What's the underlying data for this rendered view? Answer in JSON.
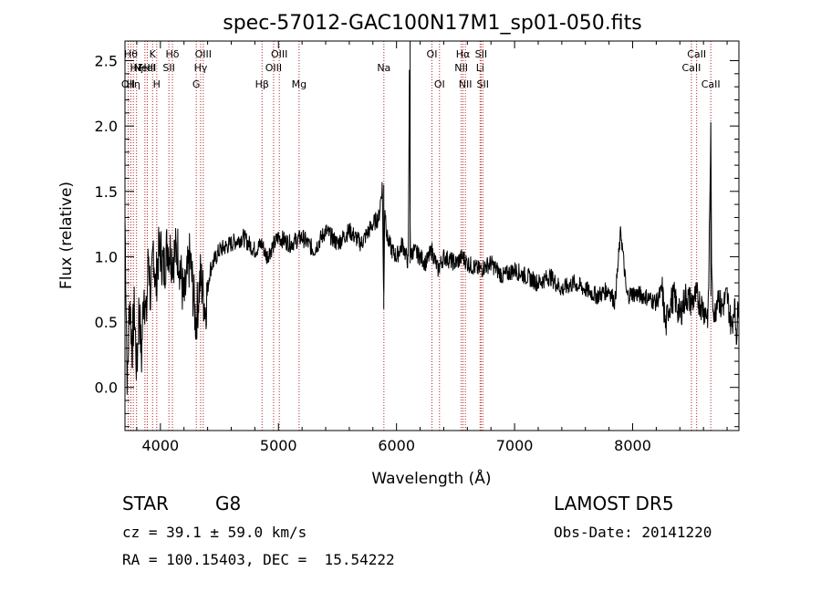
{
  "chart_data": {
    "type": "line",
    "title": "spec-57012-GAC100N17M1_sp01-050.fits",
    "xlabel": "Wavelength (Å)",
    "ylabel": "Flux (relative)",
    "xlim": [
      3700,
      8900
    ],
    "ylim": [
      -0.33,
      2.65
    ],
    "xticks": [
      4000,
      5000,
      6000,
      7000,
      8000
    ],
    "yticks": [
      0.0,
      0.5,
      1.0,
      1.5,
      2.0,
      2.5
    ],
    "xtick_labels": [
      "4000",
      "5000",
      "6000",
      "7000",
      "8000"
    ],
    "ytick_labels": [
      "0.0",
      "0.5",
      "1.0",
      "1.5",
      "2.0",
      "2.5"
    ],
    "grid": false,
    "series": [
      {
        "line_color": "#000000",
        "x": [
          3700,
          3720,
          3740,
          3760,
          3780,
          3800,
          3820,
          3840,
          3860,
          3880,
          3900,
          3920,
          3940,
          3960,
          3980,
          4000,
          4030,
          4060,
          4100,
          4150,
          4200,
          4250,
          4300,
          4340,
          4380,
          4420,
          4500,
          4600,
          4700,
          4800,
          4860,
          4900,
          5000,
          5100,
          5200,
          5300,
          5400,
          5500,
          5600,
          5700,
          5800,
          5850,
          5880,
          5892,
          5900,
          5920,
          5960,
          6000,
          6050,
          6100,
          6110,
          6115,
          6120,
          6140,
          6200,
          6250,
          6300,
          6350,
          6400,
          6500,
          6560,
          6600,
          6700,
          6800,
          6900,
          7000,
          7100,
          7200,
          7300,
          7400,
          7500,
          7600,
          7700,
          7800,
          7850,
          7900,
          7950,
          8000,
          8100,
          8200,
          8250,
          8280,
          8300,
          8350,
          8400,
          8450,
          8500,
          8540,
          8600,
          8640,
          8662,
          8670,
          8680,
          8700,
          8720,
          8750,
          8800,
          8840,
          8860,
          8880,
          8900
        ],
        "y": [
          1.3,
          0.0,
          0.7,
          0.3,
          0.6,
          0.1,
          0.65,
          0.2,
          0.8,
          0.5,
          1.05,
          0.6,
          1.1,
          0.75,
          1.0,
          1.05,
          0.9,
          1.1,
          1.0,
          1.05,
          0.65,
          1.0,
          0.5,
          0.85,
          0.6,
          0.9,
          1.05,
          1.1,
          1.15,
          1.05,
          1.1,
          1.0,
          1.15,
          1.1,
          1.15,
          1.05,
          1.2,
          1.1,
          1.2,
          1.1,
          1.25,
          1.3,
          1.55,
          0.6,
          1.4,
          1.15,
          1.05,
          1.0,
          1.1,
          0.95,
          2.55,
          1.3,
          1.0,
          1.05,
          1.0,
          0.95,
          1.05,
          0.9,
          1.0,
          0.95,
          1.0,
          0.95,
          0.9,
          0.95,
          0.85,
          0.9,
          0.85,
          0.8,
          0.85,
          0.75,
          0.8,
          0.75,
          0.7,
          0.75,
          0.65,
          1.2,
          0.7,
          0.72,
          0.7,
          0.65,
          0.75,
          0.45,
          0.6,
          0.7,
          0.55,
          0.7,
          0.65,
          0.7,
          0.6,
          0.55,
          1.95,
          0.75,
          0.65,
          0.55,
          0.75,
          0.6,
          0.7,
          0.45,
          0.65,
          0.4,
          0.7
        ]
      }
    ],
    "line_markers": [
      {
        "wavelength": 3727,
        "label": "OII",
        "row": 2
      },
      {
        "wavelength": 3750,
        "label": "Hθ",
        "row": 0
      },
      {
        "wavelength": 3771,
        "label": "Hη",
        "row": 2
      },
      {
        "wavelength": 3798,
        "label": "Hζ",
        "row": 1
      },
      {
        "wavelength": 3869,
        "label": "NeIII",
        "row": 1
      },
      {
        "wavelength": 3889,
        "label": "HeI",
        "row": 1
      },
      {
        "wavelength": 3934,
        "label": "K",
        "row": 0
      },
      {
        "wavelength": 3969,
        "label": "H",
        "row": 2
      },
      {
        "wavelength": 4072,
        "label": "SII",
        "row": 1
      },
      {
        "wavelength": 4102,
        "label": "Hδ",
        "row": 0
      },
      {
        "wavelength": 4304,
        "label": "G",
        "row": 2
      },
      {
        "wavelength": 4341,
        "label": "Hγ",
        "row": 1
      },
      {
        "wavelength": 4363,
        "label": "OIII",
        "row": 0
      },
      {
        "wavelength": 4861,
        "label": "Hβ",
        "row": 2
      },
      {
        "wavelength": 4959,
        "label": "OIII",
        "row": 1
      },
      {
        "wavelength": 5007,
        "label": "OIII",
        "row": 0
      },
      {
        "wavelength": 5175,
        "label": "Mg",
        "row": 2
      },
      {
        "wavelength": 5893,
        "label": "Na",
        "row": 1
      },
      {
        "wavelength": 6300,
        "label": "OI",
        "row": 0
      },
      {
        "wavelength": 6364,
        "label": "OI",
        "row": 2
      },
      {
        "wavelength": 6548,
        "label": "NII",
        "row": 1
      },
      {
        "wavelength": 6563,
        "label": "Hα",
        "row": 0
      },
      {
        "wavelength": 6583,
        "label": "NII",
        "row": 2
      },
      {
        "wavelength": 6708,
        "label": "Li",
        "row": 1
      },
      {
        "wavelength": 6716,
        "label": "SII",
        "row": 0
      },
      {
        "wavelength": 6731,
        "label": "SII",
        "row": 2
      },
      {
        "wavelength": 8498,
        "label": "CaII",
        "row": 1
      },
      {
        "wavelength": 8542,
        "label": "CaII",
        "row": 0
      },
      {
        "wavelength": 8662,
        "label": "CaII",
        "row": 2
      }
    ],
    "colors": {
      "spectrum": "#000000",
      "markers": "#b22222",
      "axes": "#000000"
    }
  },
  "info": {
    "object_class": "STAR",
    "subclass": "G8",
    "survey": "LAMOST DR5",
    "redshift": "cz = 39.1 ± 59.0 km/s",
    "obs_date": "Obs-Date: 20141220",
    "coords": "RA = 100.15403, DEC =  15.54222"
  }
}
